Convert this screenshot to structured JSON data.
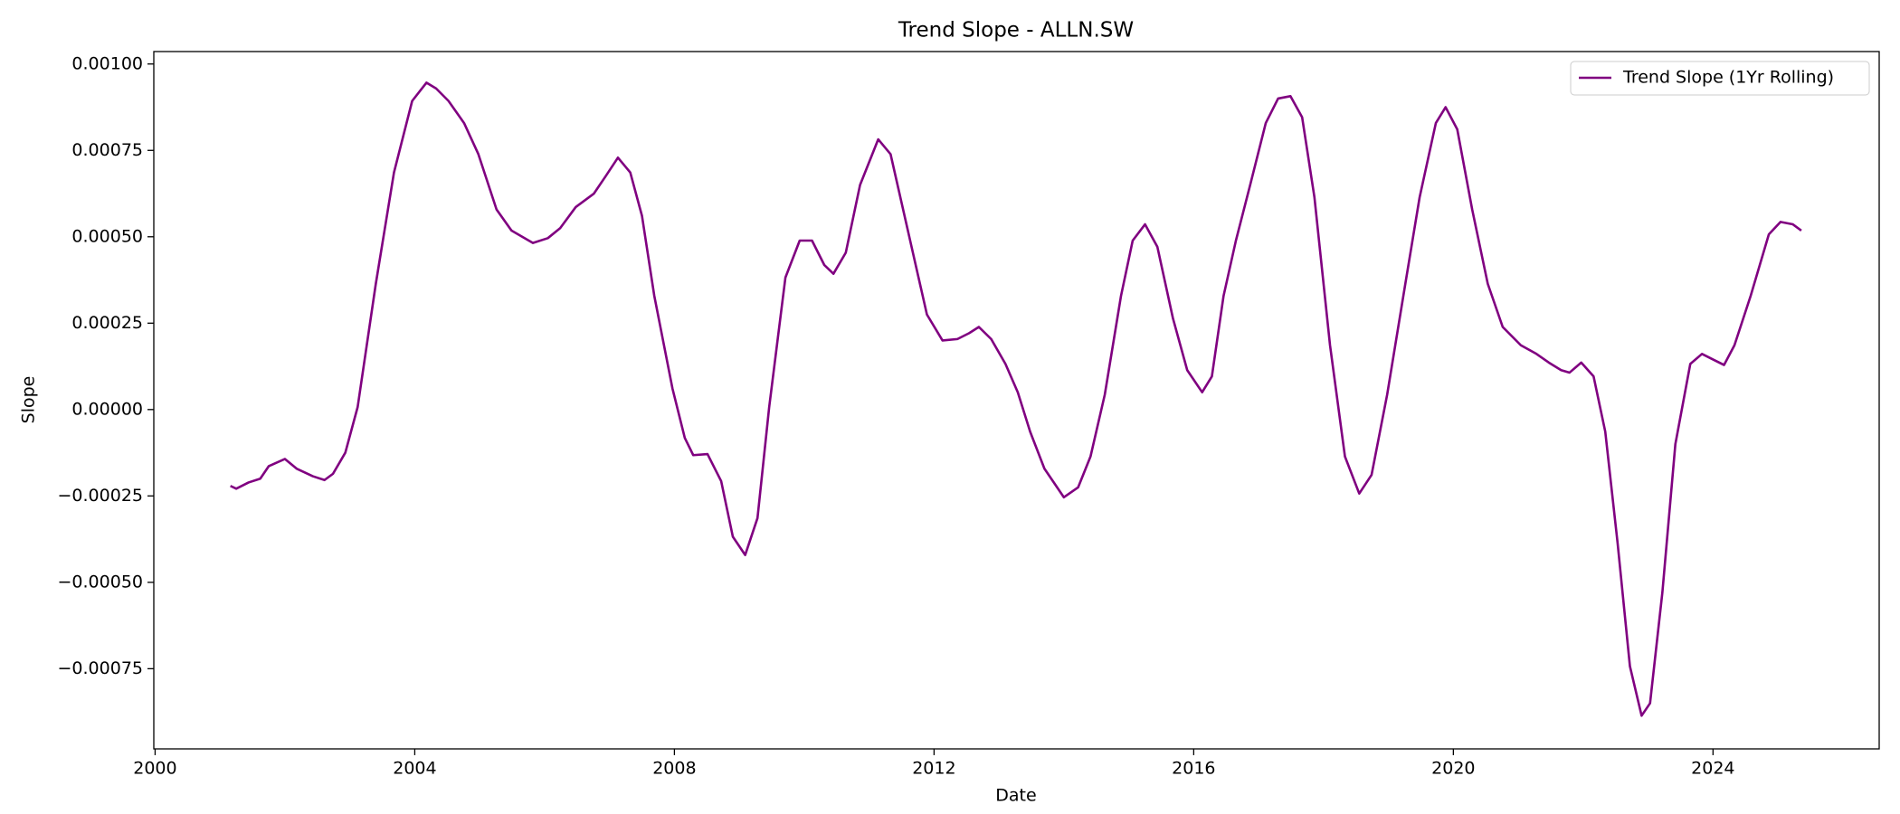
{
  "chart_data": {
    "type": "line",
    "title": "Trend Slope - ALLN.SW",
    "x_label": "Date",
    "y_label": "Slope",
    "legend": "upper right",
    "grid": false,
    "x": [
      2001.16,
      2001.25,
      2001.44,
      2001.62,
      2001.75,
      2002.0,
      2002.18,
      2002.43,
      2002.61,
      2002.74,
      2002.93,
      2003.12,
      2003.4,
      2003.68,
      2003.96,
      2004.18,
      2004.33,
      2004.52,
      2004.76,
      2004.98,
      2005.26,
      2005.49,
      2005.82,
      2006.05,
      2006.24,
      2006.48,
      2006.76,
      2006.94,
      2007.13,
      2007.32,
      2007.5,
      2007.69,
      2007.97,
      2008.16,
      2008.29,
      2008.51,
      2008.72,
      2008.9,
      2009.09,
      2009.28,
      2009.46,
      2009.71,
      2009.93,
      2010.12,
      2010.31,
      2010.45,
      2010.64,
      2010.86,
      2011.14,
      2011.33,
      2011.61,
      2011.89,
      2012.13,
      2012.36,
      2012.54,
      2012.69,
      2012.88,
      2013.1,
      2013.29,
      2013.48,
      2013.7,
      2014.0,
      2014.22,
      2014.41,
      2014.63,
      2014.88,
      2015.06,
      2015.25,
      2015.44,
      2015.68,
      2015.9,
      2016.13,
      2016.28,
      2016.46,
      2016.65,
      2016.87,
      2017.11,
      2017.3,
      2017.49,
      2017.67,
      2017.86,
      2018.1,
      2018.33,
      2018.55,
      2018.74,
      2018.98,
      2019.26,
      2019.48,
      2019.73,
      2019.88,
      2020.06,
      2020.29,
      2020.53,
      2020.76,
      2021.04,
      2021.28,
      2021.47,
      2021.66,
      2021.79,
      2021.97,
      2022.16,
      2022.34,
      2022.53,
      2022.72,
      2022.9,
      2023.03,
      2023.22,
      2023.42,
      2023.65,
      2023.83,
      2024.02,
      2024.17,
      2024.33,
      2024.58,
      2024.86,
      2025.04,
      2025.23,
      2025.36
    ],
    "series": [
      {
        "name": "Trend Slope (1Yr Rolling)",
        "color": "#800080",
        "values": [
          -0.000221,
          -0.000229,
          -0.000211,
          -0.0002,
          -0.000164,
          -0.000143,
          -0.000171,
          -0.000193,
          -0.000204,
          -0.000186,
          -0.000125,
          7e-06,
          0.000364,
          0.000686,
          0.000893,
          0.000946,
          0.000929,
          0.000893,
          0.000829,
          0.000739,
          0.000579,
          0.000518,
          0.000482,
          0.000496,
          0.000525,
          0.000586,
          0.000625,
          0.000675,
          0.000729,
          0.000686,
          0.000561,
          0.000329,
          6.1e-05,
          -8.2e-05,
          -0.000132,
          -0.000129,
          -0.000207,
          -0.000368,
          -0.000421,
          -0.000314,
          7e-06,
          0.000382,
          0.000489,
          0.000489,
          0.000418,
          0.000393,
          0.000454,
          0.00065,
          0.000782,
          0.000739,
          0.000507,
          0.000275,
          0.0002,
          0.000204,
          0.000221,
          0.000239,
          0.000204,
          0.000132,
          5e-05,
          -6.4e-05,
          -0.000171,
          -0.000254,
          -0.000225,
          -0.000136,
          4.3e-05,
          0.000329,
          0.000489,
          0.000536,
          0.000471,
          0.000264,
          0.000114,
          5e-05,
          9.6e-05,
          0.000329,
          0.000489,
          0.00065,
          0.000829,
          0.0009,
          0.000907,
          0.000846,
          0.000614,
          0.000186,
          -0.000136,
          -0.000243,
          -0.000189,
          4.3e-05,
          0.000364,
          0.000614,
          0.000829,
          0.000875,
          0.000811,
          0.000579,
          0.000364,
          0.000239,
          0.000186,
          0.000161,
          0.000136,
          0.000114,
          0.000107,
          0.000136,
          9.6e-05,
          -6.4e-05,
          -0.000386,
          -0.000743,
          -0.000886,
          -0.00085,
          -0.000529,
          -0.0001,
          0.000132,
          0.000161,
          0.000143,
          0.000129,
          0.000186,
          0.000329,
          0.000507,
          0.000543,
          0.000536,
          0.000518
        ]
      }
    ],
    "xlim": [
      1999.98,
      2026.56
    ],
    "xticks": [
      2000,
      2004,
      2008,
      2012,
      2016,
      2020,
      2024
    ],
    "ylim": [
      -0.000982,
      0.001036
    ],
    "yticks": [
      {
        "value": -0.00075,
        "label": "−0.00075"
      },
      {
        "value": -0.0005,
        "label": "−0.00050"
      },
      {
        "value": -0.00025,
        "label": "−0.00025"
      },
      {
        "value": 0,
        "label": "0.00000"
      },
      {
        "value": 0.00025,
        "label": "0.00025"
      },
      {
        "value": 0.0005,
        "label": "0.00050"
      },
      {
        "value": 0.00075,
        "label": "0.00075"
      },
      {
        "value": 0.001,
        "label": "0.00100"
      }
    ]
  }
}
